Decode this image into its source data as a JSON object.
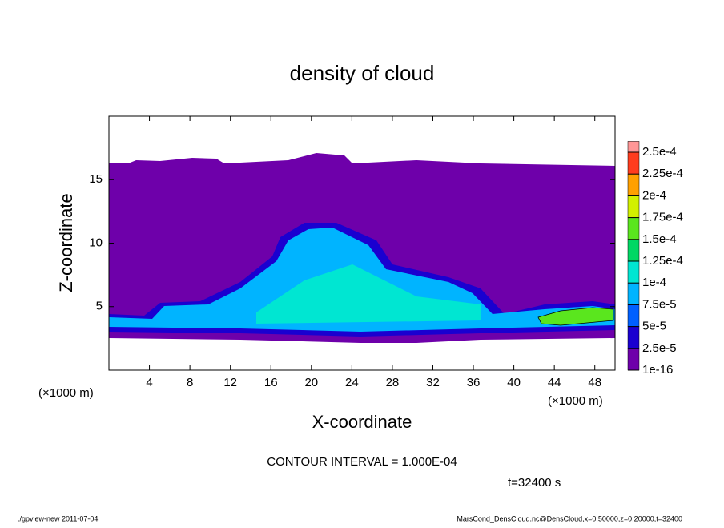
{
  "chart_data": {
    "type": "contour",
    "title": "density of cloud",
    "xlabel": "X-coordinate",
    "ylabel": "Z-coordinate",
    "x_unit": "(×1000 m)",
    "xlim": [
      0,
      50
    ],
    "xticks": [
      4,
      8,
      12,
      16,
      20,
      24,
      28,
      32,
      36,
      40,
      44,
      48
    ],
    "ylim": [
      0,
      20
    ],
    "yticks": [
      5,
      10,
      15
    ],
    "contour_interval": "CONTOUR INTERVAL = 1.000E-04",
    "time": "t=32400 s",
    "footer_left": "./gpview-new   2011-07-04",
    "footer_right": "MarsCond_DensCloud.nc@DensCloud,x=0:50000,z=0:20000,t=32400",
    "colorbar": {
      "levels": [
        {
          "value": 1e-16,
          "label": "1e-16"
        },
        {
          "value": 2.5e-05,
          "label": "2.5e-5"
        },
        {
          "value": 5e-05,
          "label": "5e-5"
        },
        {
          "value": 7.5e-05,
          "label": "7.5e-5"
        },
        {
          "value": 0.0001,
          "label": "1e-4"
        },
        {
          "value": 0.000125,
          "label": "1.25e-4"
        },
        {
          "value": 0.00015,
          "label": "1.5e-4"
        },
        {
          "value": 0.000175,
          "label": "1.75e-4"
        },
        {
          "value": 0.0002,
          "label": "2e-4"
        },
        {
          "value": 0.000225,
          "label": "2.25e-4"
        },
        {
          "value": 0.00025,
          "label": "2.5e-4"
        }
      ],
      "colors": [
        "#6e00aa",
        "#1a00d0",
        "#0060ff",
        "#00b4ff",
        "#00e6d2",
        "#00d864",
        "#5ae61e",
        "#d2f000",
        "#ffa000",
        "#ff3c1e",
        "#ff9696"
      ]
    }
  }
}
